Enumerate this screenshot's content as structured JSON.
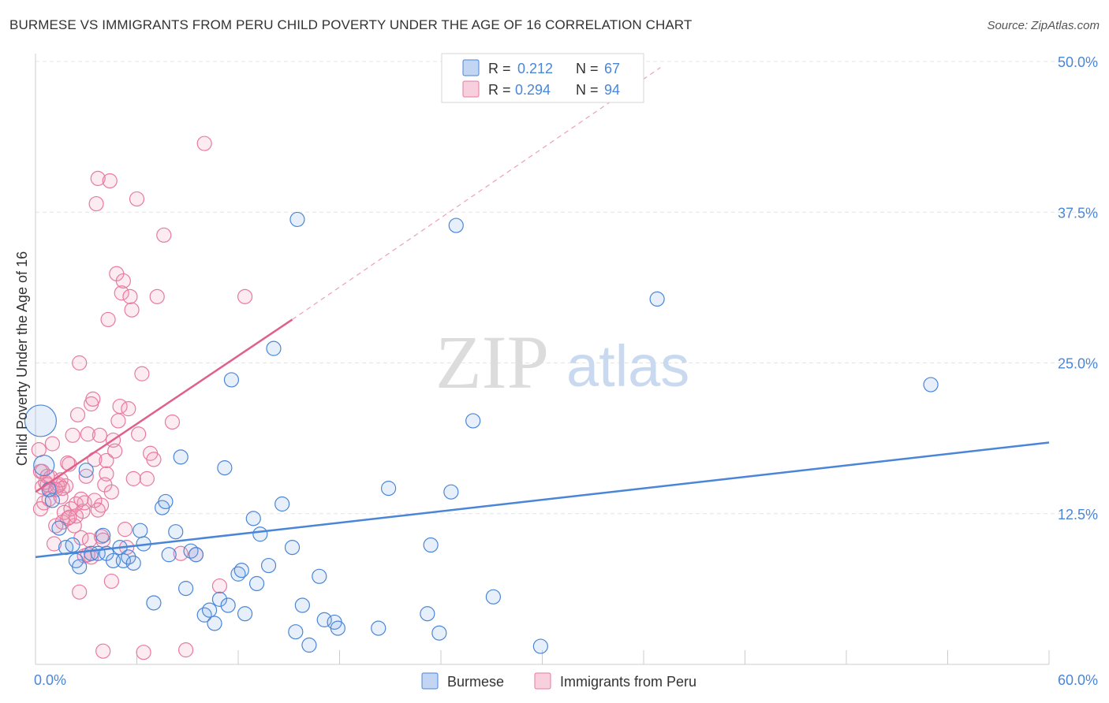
{
  "header": {
    "title": "BURMESE VS IMMIGRANTS FROM PERU CHILD POVERTY UNDER THE AGE OF 16 CORRELATION CHART",
    "source": "Source: ZipAtlas.com"
  },
  "watermark": {
    "zip": "ZIP",
    "atlas": "atlas"
  },
  "colors": {
    "burmese": "#4a86d8",
    "burmese_fill": "rgba(120,165,230,0.18)",
    "peru": "#e87aa0",
    "peru_fill": "rgba(240,150,180,0.18)",
    "peru_line": "#e0608a",
    "axis_text": "#4a86d8",
    "grid": "#e4e4e4"
  },
  "legend": {
    "r_label": "R =",
    "n_label": "N =",
    "burmese": {
      "r": "0.212",
      "n": "67"
    },
    "peru": {
      "r": "0.294",
      "n": "94"
    }
  },
  "chart_data": {
    "type": "scatter",
    "title": "BURMESE VS IMMIGRANTS FROM PERU CHILD POVERTY UNDER THE AGE OF 16 CORRELATION CHART",
    "xlabel": "",
    "ylabel": "Child Poverty Under the Age of 16",
    "xlim": [
      0,
      60
    ],
    "ylim": [
      0,
      50
    ],
    "x_tick_labels": [
      "0.0%",
      "60.0%"
    ],
    "y_ticks": [
      12.5,
      25,
      37.5,
      50
    ],
    "y_tick_labels": [
      "12.5%",
      "25.0%",
      "37.5%",
      "50.0%"
    ],
    "grid": true,
    "legend_position": "top-center",
    "series": [
      {
        "name": "Burmese",
        "r": 0.212,
        "n": 67,
        "trend": {
          "x": [
            0,
            60
          ],
          "y": [
            8.9,
            18.4
          ]
        },
        "points": [
          [
            0.3,
            20.2
          ],
          [
            0.5,
            16.5
          ],
          [
            0.8,
            14.5
          ],
          [
            1.0,
            13.6
          ],
          [
            1.4,
            11.3
          ],
          [
            1.8,
            9.7
          ],
          [
            2.2,
            9.9
          ],
          [
            2.4,
            8.6
          ],
          [
            2.6,
            8.1
          ],
          [
            3.0,
            16.1
          ],
          [
            3.3,
            9.2
          ],
          [
            3.7,
            9.2
          ],
          [
            4.0,
            10.7
          ],
          [
            4.2,
            9.2
          ],
          [
            4.6,
            8.6
          ],
          [
            5.0,
            9.7
          ],
          [
            5.2,
            8.6
          ],
          [
            5.5,
            8.9
          ],
          [
            5.8,
            8.4
          ],
          [
            6.2,
            11.1
          ],
          [
            6.4,
            10.0
          ],
          [
            7.0,
            5.1
          ],
          [
            7.5,
            13.0
          ],
          [
            7.7,
            13.5
          ],
          [
            7.9,
            9.1
          ],
          [
            8.3,
            11.0
          ],
          [
            8.6,
            17.2
          ],
          [
            8.9,
            6.3
          ],
          [
            9.2,
            9.4
          ],
          [
            9.5,
            9.1
          ],
          [
            10.0,
            4.1
          ],
          [
            10.3,
            4.5
          ],
          [
            10.6,
            3.4
          ],
          [
            10.9,
            5.4
          ],
          [
            11.2,
            16.3
          ],
          [
            11.4,
            4.9
          ],
          [
            11.6,
            23.6
          ],
          [
            12.0,
            7.5
          ],
          [
            12.4,
            4.2
          ],
          [
            12.9,
            12.1
          ],
          [
            13.3,
            10.8
          ],
          [
            13.8,
            8.2
          ],
          [
            13.1,
            6.7
          ],
          [
            14.1,
            26.2
          ],
          [
            14.6,
            13.3
          ],
          [
            15.2,
            9.7
          ],
          [
            15.4,
            2.7
          ],
          [
            15.5,
            36.9
          ],
          [
            15.8,
            4.9
          ],
          [
            16.2,
            1.6
          ],
          [
            16.8,
            7.3
          ],
          [
            17.1,
            3.7
          ],
          [
            17.7,
            3.5
          ],
          [
            17.9,
            3.0
          ],
          [
            20.3,
            3.0
          ],
          [
            20.9,
            14.6
          ],
          [
            23.2,
            4.2
          ],
          [
            23.4,
            9.9
          ],
          [
            23.9,
            2.6
          ],
          [
            24.6,
            14.3
          ],
          [
            24.9,
            36.4
          ],
          [
            25.9,
            20.2
          ],
          [
            27.1,
            5.6
          ],
          [
            29.9,
            1.5
          ],
          [
            36.8,
            30.3
          ],
          [
            53.0,
            23.2
          ],
          [
            12.2,
            7.8
          ]
        ]
      },
      {
        "name": "Immigrants from Peru",
        "r": 0.294,
        "n": 94,
        "trend": {
          "x": [
            0,
            15.2
          ],
          "y": [
            14.3,
            28.6
          ]
        },
        "trend_extension": {
          "x": [
            15.2,
            37
          ],
          "y": [
            28.6,
            49.5
          ]
        },
        "points": [
          [
            0.2,
            17.8
          ],
          [
            0.3,
            16.0
          ],
          [
            0.4,
            14.7
          ],
          [
            0.5,
            13.4
          ],
          [
            0.6,
            15.1
          ],
          [
            0.7,
            14.9
          ],
          [
            0.8,
            13.7
          ],
          [
            0.9,
            15.5
          ],
          [
            1.0,
            18.3
          ],
          [
            1.1,
            10.0
          ],
          [
            1.2,
            11.5
          ],
          [
            1.3,
            14.8
          ],
          [
            1.4,
            14.9
          ],
          [
            1.5,
            13.9
          ],
          [
            1.6,
            11.8
          ],
          [
            1.7,
            12.6
          ],
          [
            1.8,
            14.8
          ],
          [
            1.9,
            12.1
          ],
          [
            2.0,
            16.6
          ],
          [
            2.1,
            12.9
          ],
          [
            2.2,
            19.0
          ],
          [
            2.3,
            11.5
          ],
          [
            2.4,
            13.3
          ],
          [
            2.5,
            20.7
          ],
          [
            2.6,
            6.0
          ],
          [
            2.7,
            10.5
          ],
          [
            2.8,
            12.7
          ],
          [
            2.9,
            13.4
          ],
          [
            3.0,
            15.6
          ],
          [
            3.1,
            9.1
          ],
          [
            3.2,
            10.3
          ],
          [
            3.3,
            21.6
          ],
          [
            3.4,
            22.0
          ],
          [
            3.5,
            17.0
          ],
          [
            3.6,
            38.2
          ],
          [
            3.7,
            40.3
          ],
          [
            3.8,
            19.0
          ],
          [
            3.9,
            13.2
          ],
          [
            4.0,
            10.3
          ],
          [
            4.1,
            14.9
          ],
          [
            4.2,
            16.9
          ],
          [
            4.3,
            28.6
          ],
          [
            4.4,
            40.1
          ],
          [
            4.5,
            6.9
          ],
          [
            4.6,
            18.6
          ],
          [
            4.7,
            17.7
          ],
          [
            4.8,
            32.4
          ],
          [
            4.9,
            20.2
          ],
          [
            5.0,
            21.4
          ],
          [
            5.1,
            30.8
          ],
          [
            5.2,
            31.8
          ],
          [
            5.3,
            11.2
          ],
          [
            5.5,
            21.2
          ],
          [
            5.6,
            30.5
          ],
          [
            5.7,
            29.4
          ],
          [
            5.8,
            15.4
          ],
          [
            6.0,
            38.6
          ],
          [
            6.1,
            19.1
          ],
          [
            6.3,
            24.1
          ],
          [
            6.6,
            15.4
          ],
          [
            6.8,
            17.5
          ],
          [
            7.0,
            17.0
          ],
          [
            7.2,
            30.5
          ],
          [
            7.6,
            35.6
          ],
          [
            8.1,
            20.1
          ],
          [
            8.6,
            9.2
          ],
          [
            9.5,
            9.1
          ],
          [
            10.0,
            43.2
          ],
          [
            10.9,
            6.5
          ],
          [
            12.4,
            30.5
          ],
          [
            0.4,
            16.0
          ],
          [
            0.9,
            14.5
          ],
          [
            1.5,
            15.3
          ],
          [
            2.4,
            12.3
          ],
          [
            3.1,
            19.1
          ],
          [
            3.3,
            8.9
          ],
          [
            3.9,
            10.6
          ],
          [
            1.2,
            14.5
          ],
          [
            0.7,
            15.6
          ],
          [
            2.0,
            12.2
          ],
          [
            2.7,
            13.7
          ],
          [
            4.0,
            1.1
          ],
          [
            6.4,
            1.0
          ],
          [
            8.9,
            1.2
          ],
          [
            1.6,
            14.6
          ],
          [
            0.3,
            12.9
          ],
          [
            2.9,
            9.0
          ],
          [
            3.5,
            13.6
          ],
          [
            1.9,
            16.7
          ],
          [
            4.5,
            14.3
          ],
          [
            5.4,
            9.7
          ],
          [
            3.7,
            12.8
          ],
          [
            4.2,
            15.8
          ],
          [
            2.6,
            25.0
          ]
        ]
      }
    ]
  }
}
